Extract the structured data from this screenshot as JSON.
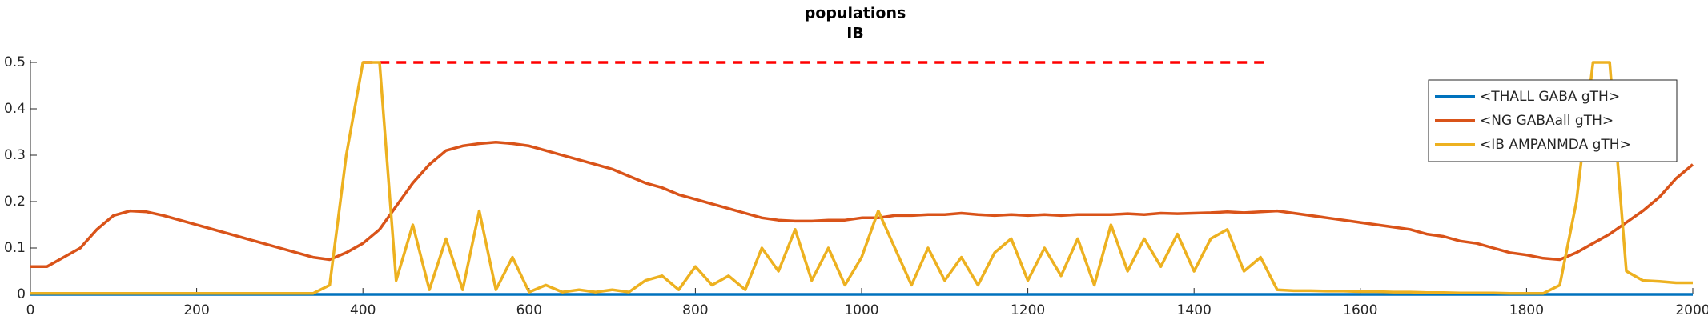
{
  "chart_data": {
    "type": "line",
    "title": "populations",
    "subtitle": "IB",
    "x": [
      0,
      20,
      40,
      60,
      80,
      100,
      120,
      140,
      160,
      180,
      200,
      220,
      240,
      260,
      280,
      300,
      320,
      340,
      360,
      380,
      400,
      420,
      440,
      460,
      480,
      500,
      520,
      540,
      560,
      580,
      600,
      620,
      640,
      660,
      680,
      700,
      720,
      740,
      760,
      780,
      800,
      820,
      840,
      860,
      880,
      900,
      920,
      940,
      960,
      980,
      1000,
      1020,
      1040,
      1060,
      1080,
      1100,
      1120,
      1140,
      1160,
      1180,
      1200,
      1220,
      1240,
      1260,
      1280,
      1300,
      1320,
      1340,
      1360,
      1380,
      1400,
      1420,
      1440,
      1460,
      1480,
      1500,
      1520,
      1540,
      1560,
      1580,
      1600,
      1620,
      1640,
      1660,
      1680,
      1700,
      1720,
      1740,
      1760,
      1780,
      1800,
      1820,
      1840,
      1860,
      1880,
      1900,
      1920,
      1940,
      1960,
      1980,
      2000
    ],
    "series": [
      {
        "name": "<THALL GABA gTH>",
        "color": "#0072bd",
        "values": [
          0,
          0,
          0,
          0,
          0,
          0,
          0,
          0,
          0,
          0,
          0,
          0,
          0,
          0,
          0,
          0,
          0,
          0,
          0,
          0,
          0,
          0,
          0,
          0,
          0,
          0,
          0,
          0,
          0,
          0,
          0,
          0,
          0,
          0,
          0,
          0,
          0,
          0,
          0,
          0,
          0,
          0,
          0,
          0,
          0,
          0,
          0,
          0,
          0,
          0,
          0,
          0,
          0,
          0,
          0,
          0,
          0,
          0,
          0,
          0,
          0,
          0,
          0,
          0,
          0,
          0,
          0,
          0,
          0,
          0,
          0,
          0,
          0,
          0,
          0,
          0,
          0,
          0,
          0,
          0,
          0,
          0,
          0,
          0,
          0,
          0,
          0,
          0,
          0,
          0,
          0,
          0,
          0,
          0,
          0,
          0,
          0,
          0,
          0,
          0,
          0
        ]
      },
      {
        "name": "<NG GABAall gTH>",
        "color": "#d95319",
        "values": [
          0.06,
          0.06,
          0.08,
          0.1,
          0.14,
          0.17,
          0.18,
          0.178,
          0.17,
          0.16,
          0.15,
          0.14,
          0.13,
          0.12,
          0.11,
          0.1,
          0.09,
          0.08,
          0.075,
          0.09,
          0.11,
          0.14,
          0.19,
          0.24,
          0.28,
          0.31,
          0.32,
          0.325,
          0.328,
          0.325,
          0.32,
          0.31,
          0.3,
          0.29,
          0.28,
          0.27,
          0.255,
          0.24,
          0.23,
          0.215,
          0.205,
          0.195,
          0.185,
          0.175,
          0.165,
          0.16,
          0.158,
          0.158,
          0.16,
          0.16,
          0.165,
          0.165,
          0.17,
          0.17,
          0.172,
          0.172,
          0.175,
          0.172,
          0.17,
          0.172,
          0.17,
          0.172,
          0.17,
          0.172,
          0.172,
          0.172,
          0.174,
          0.172,
          0.175,
          0.174,
          0.175,
          0.176,
          0.178,
          0.176,
          0.178,
          0.18,
          0.175,
          0.17,
          0.165,
          0.16,
          0.155,
          0.15,
          0.145,
          0.14,
          0.13,
          0.125,
          0.115,
          0.11,
          0.1,
          0.09,
          0.085,
          0.078,
          0.075,
          0.09,
          0.11,
          0.13,
          0.155,
          0.18,
          0.21,
          0.25,
          0.28
        ]
      },
      {
        "name": "<IB AMPANMDA gTH>",
        "color": "#edb120",
        "values": [
          0.002,
          0.002,
          0.002,
          0.002,
          0.002,
          0.002,
          0.002,
          0.002,
          0.002,
          0.002,
          0.002,
          0.002,
          0.002,
          0.002,
          0.002,
          0.002,
          0.002,
          0.002,
          0.02,
          0.3,
          0.5,
          0.5,
          0.03,
          0.15,
          0.01,
          0.12,
          0.01,
          0.18,
          0.01,
          0.08,
          0.005,
          0.02,
          0.005,
          0.01,
          0.005,
          0.01,
          0.005,
          0.03,
          0.04,
          0.01,
          0.06,
          0.02,
          0.04,
          0.01,
          0.1,
          0.05,
          0.14,
          0.03,
          0.1,
          0.02,
          0.08,
          0.18,
          0.1,
          0.02,
          0.1,
          0.03,
          0.08,
          0.02,
          0.09,
          0.12,
          0.03,
          0.1,
          0.04,
          0.12,
          0.02,
          0.15,
          0.05,
          0.12,
          0.06,
          0.13,
          0.05,
          0.12,
          0.14,
          0.05,
          0.08,
          0.01,
          0.008,
          0.008,
          0.007,
          0.007,
          0.006,
          0.006,
          0.005,
          0.005,
          0.004,
          0.004,
          0.003,
          0.003,
          0.003,
          0.002,
          0.002,
          0.002,
          0.02,
          0.2,
          0.5,
          0.5,
          0.05,
          0.03,
          0.028,
          0.025,
          0.025
        ]
      }
    ],
    "reference_line": {
      "y": 0.5,
      "x": [
        400,
        1490
      ],
      "color": "#ff0000"
    },
    "xlim": [
      0,
      2000
    ],
    "xticks": [
      0,
      200,
      400,
      600,
      800,
      1000,
      1200,
      1400,
      1600,
      1800,
      2000
    ],
    "ylim": [
      0,
      0.5
    ],
    "yticks": [
      0,
      0.1,
      0.2,
      0.3,
      0.4,
      0.5
    ],
    "legend": "top-right"
  }
}
